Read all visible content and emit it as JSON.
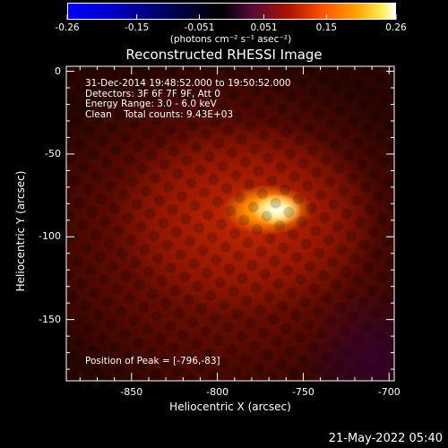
{
  "chart_data": {
    "type": "heatmap",
    "title": "Reconstructed RHESSI Image",
    "xlabel": "Heliocentric X (arcsec)",
    "ylabel": "Heliocentric Y (arcsec)",
    "xlim": [
      -888,
      -697
    ],
    "ylim": [
      -187,
      3
    ],
    "x_ticks": [
      "-850",
      "-800",
      "-750",
      "-700"
    ],
    "y_ticks": [
      "0",
      "-50",
      "-100",
      "-150"
    ],
    "x_tick_values": [
      -850,
      -800,
      -750,
      -700
    ],
    "y_tick_values": [
      0,
      -50,
      -100,
      -150
    ],
    "peak": [
      -796,
      -83
    ],
    "colorbar": {
      "ticks": [
        "-0.26",
        "-0.15",
        "-0.051",
        "0.051",
        "0.15",
        "0.26"
      ],
      "tick_values": [
        -0.26,
        -0.15,
        -0.051,
        0.051,
        0.15,
        0.26
      ],
      "range": [
        -0.26,
        0.26
      ],
      "unit_label": "(photons cm⁻² s⁻¹ asec⁻²)",
      "colors": [
        "#0000ff",
        "#000000",
        "#ff6600",
        "#ffff00",
        "#ffffff"
      ]
    },
    "info_lines": [
      "31-Dec-2014 19:48:52.000 to 19:50:52.000",
      "Detectors: 3F 6F 7F 9F, Att 0",
      "Energy Range: 3.0 - 6.0 keV",
      "Clean    Total counts: 9.43E+03"
    ],
    "peak_label": "Position of Peak = [-796,-83]"
  },
  "footer_date": "21-May-2022 05:40"
}
